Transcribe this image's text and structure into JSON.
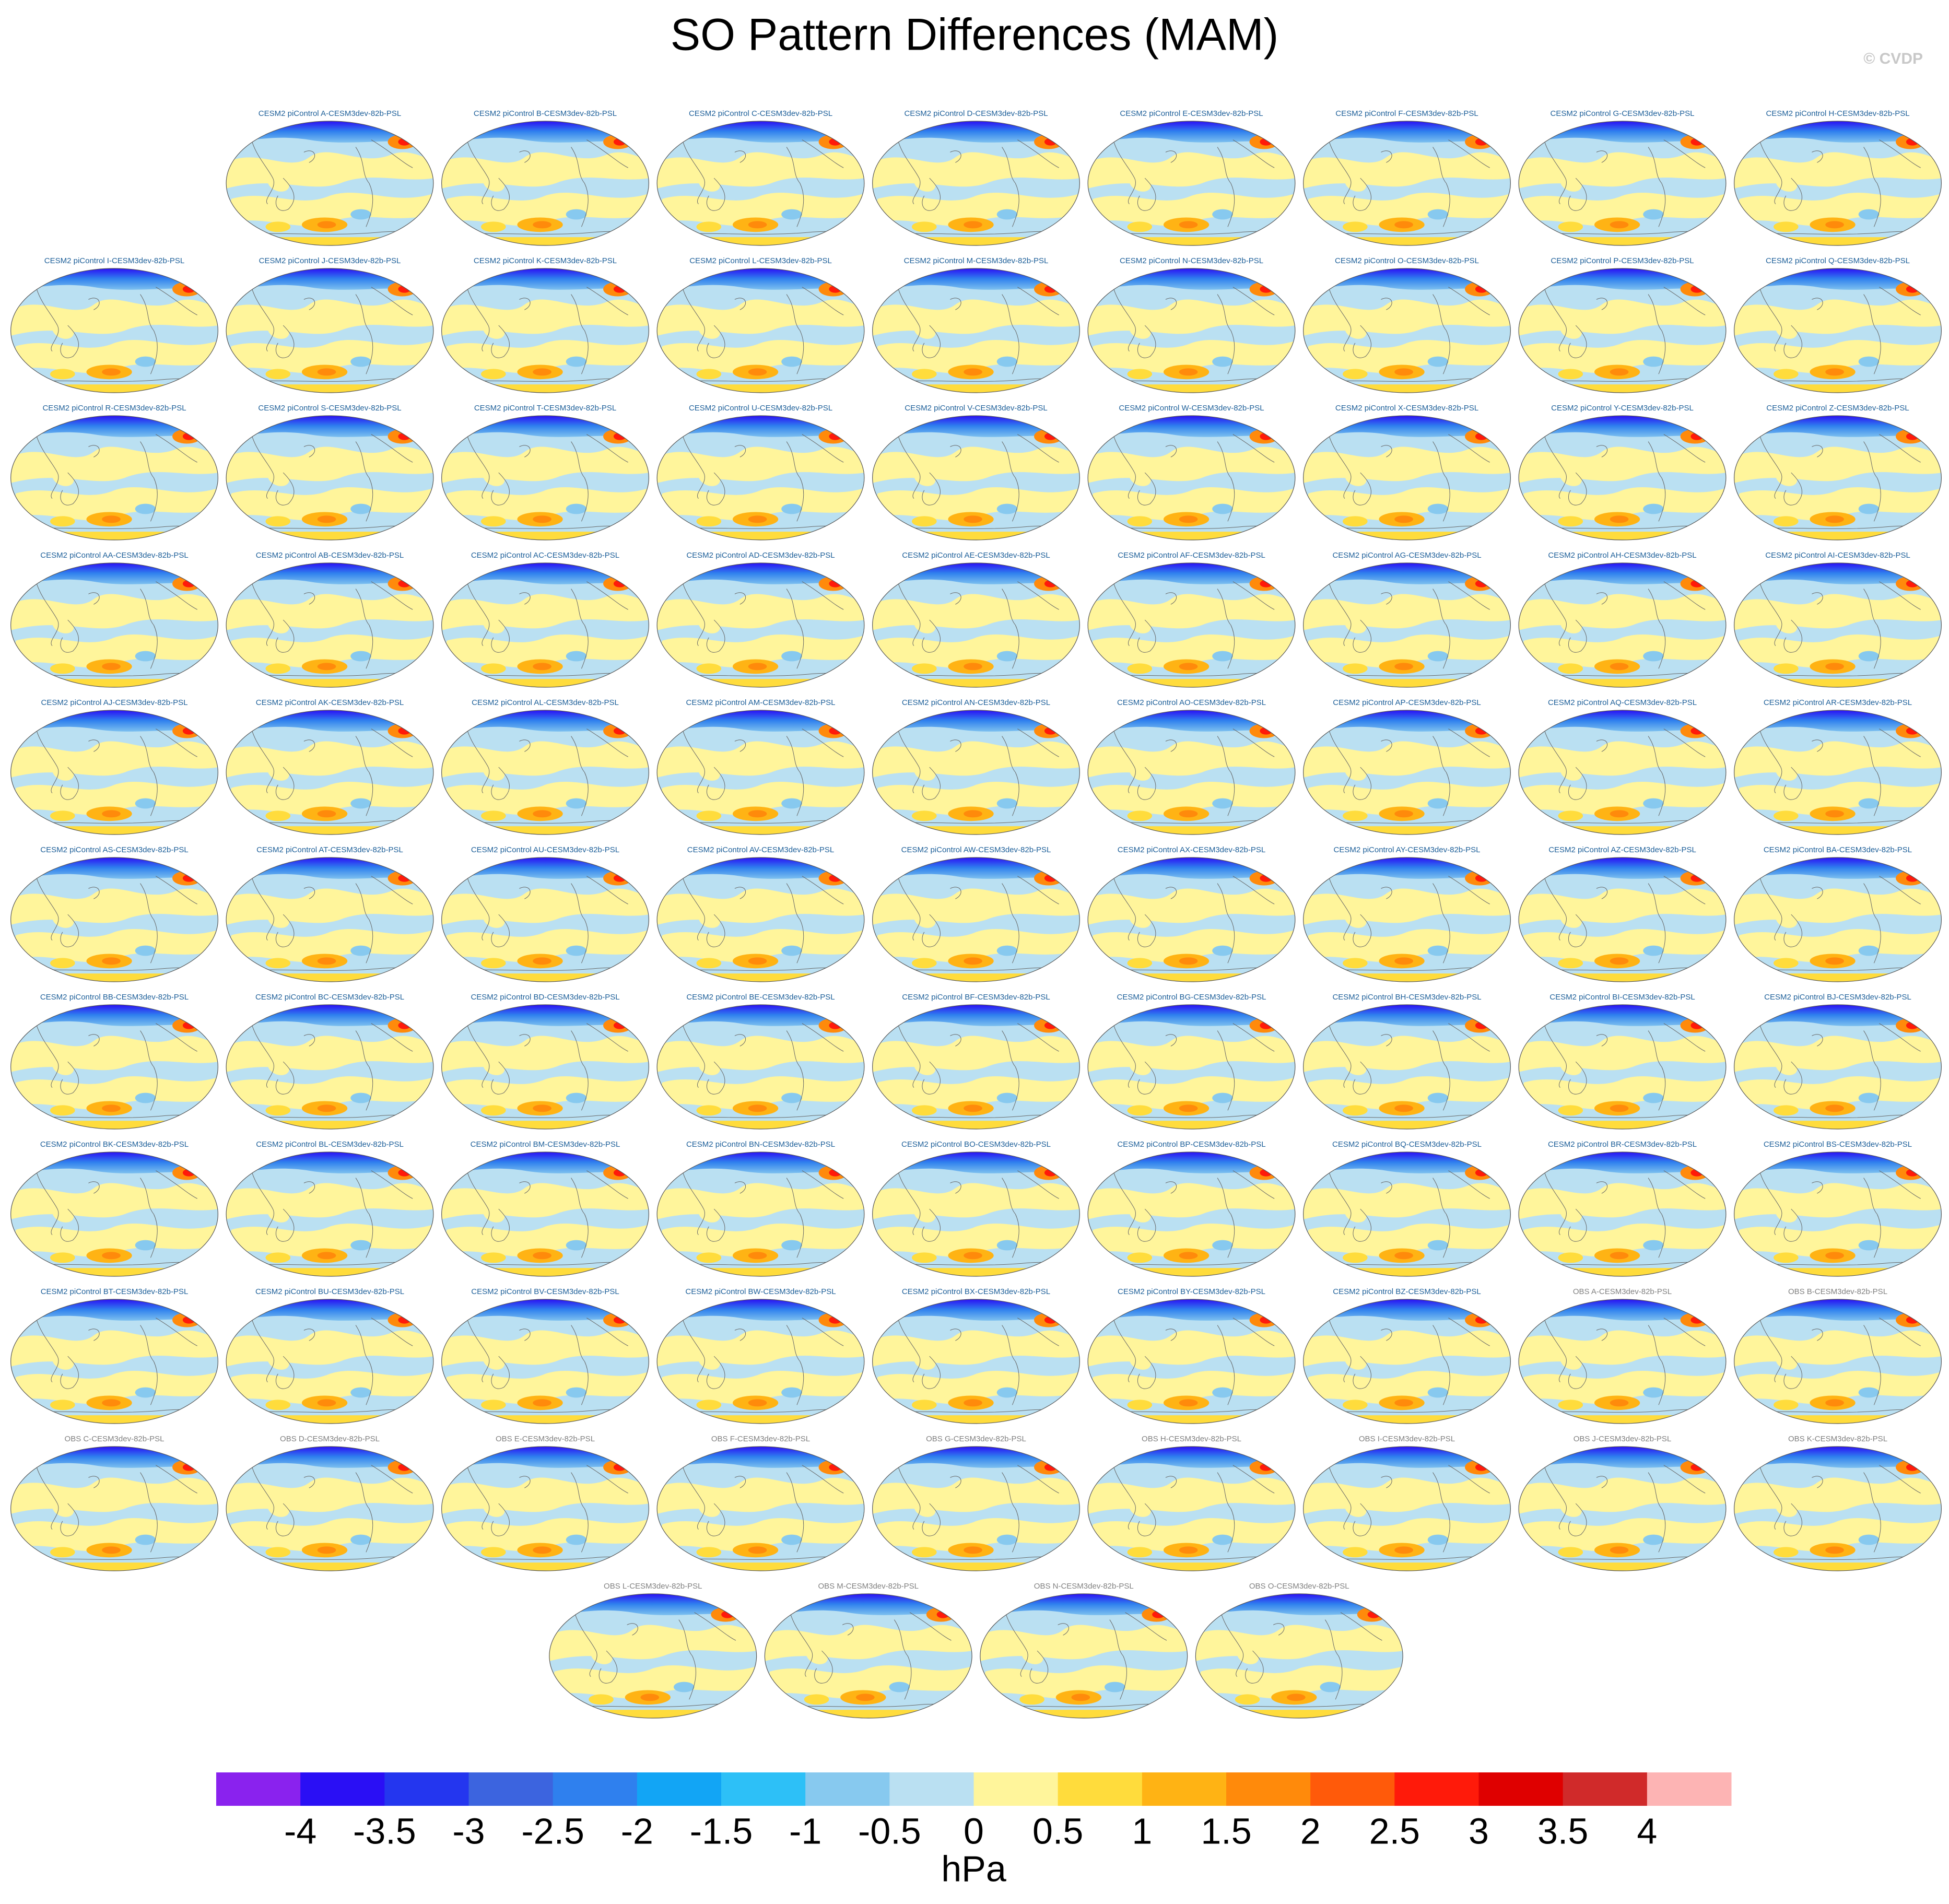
{
  "title": "SO Pattern Differences (MAM)",
  "watermark": "© CVDP",
  "panel_groups": [
    {
      "color": "#1d5f99",
      "labels": [
        "CESM2 piControl A-CESM3dev-82b-PSL",
        "CESM2 piControl B-CESM3dev-82b-PSL",
        "CESM2 piControl C-CESM3dev-82b-PSL",
        "CESM2 piControl D-CESM3dev-82b-PSL",
        "CESM2 piControl E-CESM3dev-82b-PSL",
        "CESM2 piControl F-CESM3dev-82b-PSL",
        "CESM2 piControl G-CESM3dev-82b-PSL",
        "CESM2 piControl H-CESM3dev-82b-PSL",
        "CESM2 piControl I-CESM3dev-82b-PSL",
        "CESM2 piControl J-CESM3dev-82b-PSL",
        "CESM2 piControl K-CESM3dev-82b-PSL",
        "CESM2 piControl L-CESM3dev-82b-PSL",
        "CESM2 piControl M-CESM3dev-82b-PSL",
        "CESM2 piControl N-CESM3dev-82b-PSL",
        "CESM2 piControl O-CESM3dev-82b-PSL",
        "CESM2 piControl P-CESM3dev-82b-PSL",
        "CESM2 piControl Q-CESM3dev-82b-PSL",
        "CESM2 piControl R-CESM3dev-82b-PSL",
        "CESM2 piControl S-CESM3dev-82b-PSL",
        "CESM2 piControl T-CESM3dev-82b-PSL",
        "CESM2 piControl U-CESM3dev-82b-PSL",
        "CESM2 piControl V-CESM3dev-82b-PSL",
        "CESM2 piControl W-CESM3dev-82b-PSL",
        "CESM2 piControl X-CESM3dev-82b-PSL",
        "CESM2 piControl Y-CESM3dev-82b-PSL",
        "CESM2 piControl Z-CESM3dev-82b-PSL",
        "CESM2 piControl AA-CESM3dev-82b-PSL",
        "CESM2 piControl AB-CESM3dev-82b-PSL",
        "CESM2 piControl AC-CESM3dev-82b-PSL",
        "CESM2 piControl AD-CESM3dev-82b-PSL",
        "CESM2 piControl AE-CESM3dev-82b-PSL",
        "CESM2 piControl AF-CESM3dev-82b-PSL",
        "CESM2 piControl AG-CESM3dev-82b-PSL",
        "CESM2 piControl AH-CESM3dev-82b-PSL",
        "CESM2 piControl AI-CESM3dev-82b-PSL",
        "CESM2 piControl AJ-CESM3dev-82b-PSL",
        "CESM2 piControl AK-CESM3dev-82b-PSL",
        "CESM2 piControl AL-CESM3dev-82b-PSL",
        "CESM2 piControl AM-CESM3dev-82b-PSL",
        "CESM2 piControl AN-CESM3dev-82b-PSL",
        "CESM2 piControl AO-CESM3dev-82b-PSL",
        "CESM2 piControl AP-CESM3dev-82b-PSL",
        "CESM2 piControl AQ-CESM3dev-82b-PSL",
        "CESM2 piControl AR-CESM3dev-82b-PSL",
        "CESM2 piControl AS-CESM3dev-82b-PSL",
        "CESM2 piControl AT-CESM3dev-82b-PSL",
        "CESM2 piControl AU-CESM3dev-82b-PSL",
        "CESM2 piControl AV-CESM3dev-82b-PSL",
        "CESM2 piControl AW-CESM3dev-82b-PSL",
        "CESM2 piControl AX-CESM3dev-82b-PSL",
        "CESM2 piControl AY-CESM3dev-82b-PSL",
        "CESM2 piControl AZ-CESM3dev-82b-PSL",
        "CESM2 piControl BA-CESM3dev-82b-PSL",
        "CESM2 piControl BB-CESM3dev-82b-PSL",
        "CESM2 piControl BC-CESM3dev-82b-PSL",
        "CESM2 piControl BD-CESM3dev-82b-PSL",
        "CESM2 piControl BE-CESM3dev-82b-PSL",
        "CESM2 piControl BF-CESM3dev-82b-PSL",
        "CESM2 piControl BG-CESM3dev-82b-PSL",
        "CESM2 piControl BH-CESM3dev-82b-PSL",
        "CESM2 piControl BI-CESM3dev-82b-PSL",
        "CESM2 piControl BJ-CESM3dev-82b-PSL",
        "CESM2 piControl BK-CESM3dev-82b-PSL",
        "CESM2 piControl BL-CESM3dev-82b-PSL",
        "CESM2 piControl BM-CESM3dev-82b-PSL",
        "CESM2 piControl BN-CESM3dev-82b-PSL",
        "CESM2 piControl BO-CESM3dev-82b-PSL",
        "CESM2 piControl BP-CESM3dev-82b-PSL",
        "CESM2 piControl BQ-CESM3dev-82b-PSL",
        "CESM2 piControl BR-CESM3dev-82b-PSL",
        "CESM2 piControl BS-CESM3dev-82b-PSL",
        "CESM2 piControl BT-CESM3dev-82b-PSL",
        "CESM2 piControl BU-CESM3dev-82b-PSL",
        "CESM2 piControl BV-CESM3dev-82b-PSL",
        "CESM2 piControl BW-CESM3dev-82b-PSL",
        "CESM2 piControl BX-CESM3dev-82b-PSL",
        "CESM2 piControl BY-CESM3dev-82b-PSL",
        "CESM2 piControl BZ-CESM3dev-82b-PSL"
      ]
    },
    {
      "color": "#808080",
      "labels": [
        "OBS A-CESM3dev-82b-PSL",
        "OBS B-CESM3dev-82b-PSL",
        "OBS C-CESM3dev-82b-PSL",
        "OBS D-CESM3dev-82b-PSL",
        "OBS E-CESM3dev-82b-PSL",
        "OBS F-CESM3dev-82b-PSL",
        "OBS G-CESM3dev-82b-PSL",
        "OBS H-CESM3dev-82b-PSL",
        "OBS I-CESM3dev-82b-PSL",
        "OBS J-CESM3dev-82b-PSL",
        "OBS K-CESM3dev-82b-PSL",
        "OBS L-CESM3dev-82b-PSL",
        "OBS M-CESM3dev-82b-PSL",
        "OBS N-CESM3dev-82b-PSL",
        "OBS O-CESM3dev-82b-PSL"
      ]
    }
  ],
  "colorbar": {
    "colors": [
      "#8a22ee",
      "#2a0ff5",
      "#2436ef",
      "#3c64df",
      "#2f80ee",
      "#12a5f5",
      "#2dc0f7",
      "#87c9ef",
      "#bae0f2",
      "#fff59b",
      "#ffdc3c",
      "#ffb314",
      "#ff8a0b",
      "#ff5a0a",
      "#ff1a0a",
      "#df0000",
      "#d02a2a",
      "#fdb4b4"
    ],
    "ticks": [
      -4,
      -3.5,
      -3,
      -2.5,
      -2,
      -1.5,
      -1,
      -0.5,
      0,
      0.5,
      1,
      1.5,
      2,
      2.5,
      3,
      3.5,
      4
    ],
    "unit": "hPa"
  }
}
